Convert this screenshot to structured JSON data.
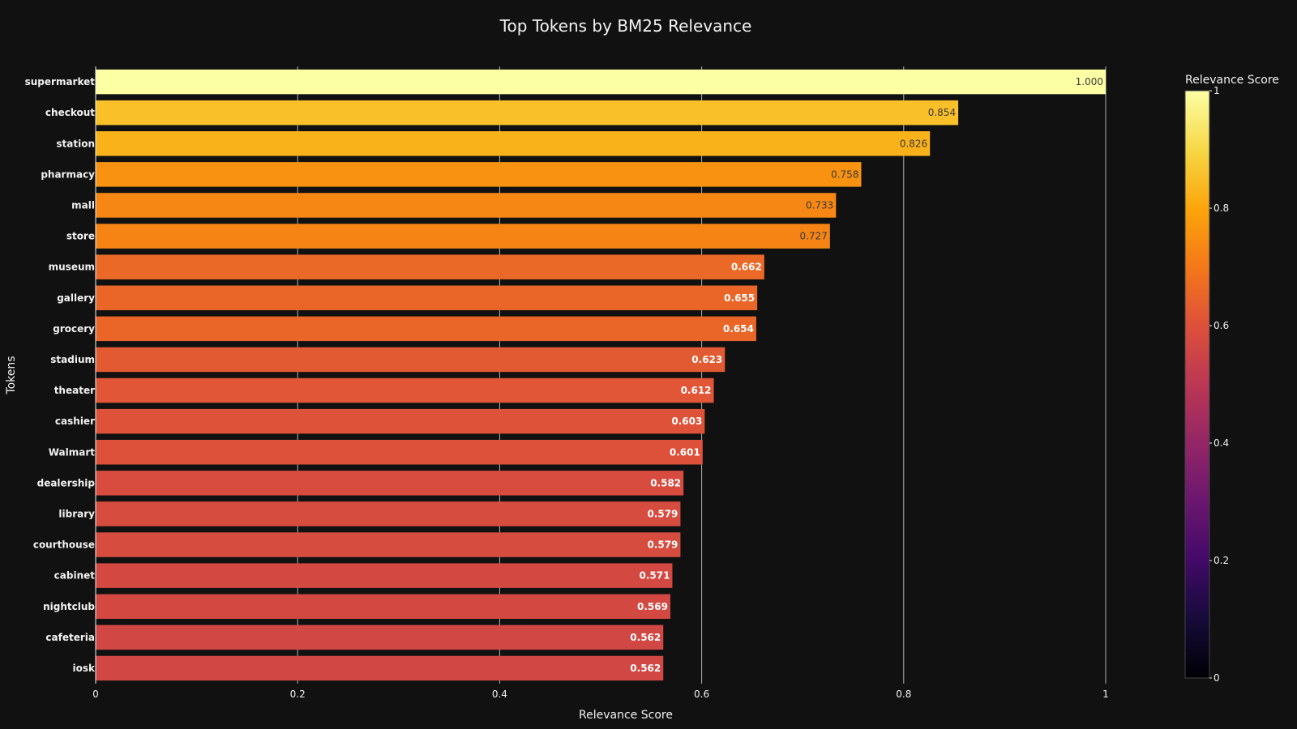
{
  "chart_data": {
    "type": "bar",
    "orientation": "horizontal",
    "title": "Top Tokens by BM25 Relevance",
    "xlabel": "Relevance Score",
    "ylabel": "Tokens",
    "xlim": [
      0,
      1
    ],
    "xticks": [
      "0",
      "0.2",
      "0.4",
      "0.6",
      "0.8",
      "1"
    ],
    "grid": true,
    "colorscale": "inferno",
    "colorbar": {
      "title": "Relevance Score",
      "range": [
        0,
        1
      ],
      "ticks": [
        "0",
        "0.2",
        "0.4",
        "0.6",
        "0.8",
        "1"
      ]
    },
    "categories": [
      "supermarket",
      "checkout",
      "station",
      "pharmacy",
      "mall",
      "store",
      "museum",
      "gallery",
      "grocery",
      "stadium",
      "theater",
      "cashier",
      "Walmart",
      "dealership",
      "library",
      "courthouse",
      "cabinet",
      "nightclub",
      "cafeteria",
      "iosk"
    ],
    "values": [
      1.0,
      0.854,
      0.826,
      0.758,
      0.733,
      0.727,
      0.662,
      0.655,
      0.654,
      0.623,
      0.612,
      0.603,
      0.601,
      0.582,
      0.579,
      0.579,
      0.571,
      0.569,
      0.562,
      0.562
    ],
    "data_labels": [
      "1.000",
      "0.854",
      "0.826",
      "0.758",
      "0.733",
      "0.727",
      "0.662",
      "0.655",
      "0.654",
      "0.623",
      "0.612",
      "0.603",
      "0.601",
      "0.582",
      "0.579",
      "0.579",
      "0.571",
      "0.569",
      "0.562",
      "0.562"
    ]
  }
}
